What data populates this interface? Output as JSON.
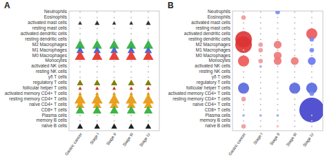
{
  "chart_data": [
    {
      "type": "triangle",
      "title": "A",
      "categories": [
        "Gastric cancer",
        "Stage I",
        "Stage II",
        "Stage III",
        "Stage IV"
      ],
      "y_categories": [
        "Neutrophils",
        "Eosinophils",
        "activated mast cells",
        "resting mast cells",
        "activated dendritic cells",
        "resting dendritic cells",
        "M2 Macrophages",
        "M1 Macrophages",
        "M0 Macrophages",
        "Monocytes",
        "activated NK cells",
        "resting NK cells",
        "γδ T cells",
        "regulatory T cells",
        "follicular helper T cells",
        "activated memory CD4+ T cells",
        "resting memory CD4+ T cells",
        "naïve CD4+ T cells",
        "CD8+ T cells",
        "Plasma cells",
        "memory B cells",
        "naïve B cells"
      ],
      "series": [
        {
          "name": "M2 Macrophages",
          "color": "#3db54a",
          "values": [
            140,
            140,
            140,
            140,
            140
          ]
        },
        {
          "name": "M1 Macrophages",
          "color": "#4169e1",
          "values": [
            80,
            80,
            80,
            80,
            80
          ]
        },
        {
          "name": "M0 Macrophages",
          "color": "#e8433a",
          "values": [
            160,
            160,
            160,
            160,
            160
          ]
        },
        {
          "name": "regulatory T cells",
          "color": "#808000",
          "values": [
            60,
            60,
            60,
            60,
            60
          ]
        },
        {
          "name": "follicular helper T cells",
          "color": "#cc3333",
          "values": [
            20,
            20,
            20,
            20,
            20
          ]
        },
        {
          "name": "activated memory CD4+ T cells",
          "color": "#d4a017",
          "values": [
            20,
            20,
            20,
            20,
            20
          ]
        },
        {
          "name": "resting memory CD4+ T cells",
          "color": "#e8a020",
          "values": [
            180,
            180,
            180,
            180,
            180
          ]
        },
        {
          "name": "naïve CD4+ T cells",
          "color": "#e8a020",
          "values": [
            110,
            110,
            110,
            110,
            110
          ]
        },
        {
          "name": "CD8+ T cells",
          "color": "#3db54a",
          "values": [
            110,
            110,
            110,
            110,
            110
          ]
        },
        {
          "name": "naïve B cells",
          "color": "#222222",
          "values": [
            50,
            50,
            50,
            50,
            50
          ]
        },
        {
          "name": "activated mast cells",
          "color": "#333333",
          "values": [
            22,
            35,
            22,
            22,
            35
          ]
        }
      ]
    },
    {
      "type": "bubble",
      "title": "B",
      "categories": [
        "Gastric cancer",
        "Stage I",
        "Stage II",
        "Stage III",
        "Stage IV"
      ],
      "y_categories": [
        "Neutrophils",
        "Eosinophils",
        "activated mast cells",
        "resting mast cells",
        "activated dendritic cells",
        "resting dendritic cells",
        "M2 Macrophages",
        "M1 Macrophages",
        "M0 Macrophages",
        "Monocytes",
        "activated NK cells",
        "resting NK cells",
        "γδ T cells",
        "regulatory T cells",
        "follicular helper T cells",
        "activated memory CD4+ T cells",
        "resting memory CD4+ T cells",
        "naïve CD4+ T cells",
        "CD8+ T cells",
        "Plasma cells",
        "memory B cells",
        "naïve B cells"
      ],
      "series": [
        {
          "name": "Neutrophils",
          "values": [
            null,
            null,
            30,
            null,
            null
          ],
          "colors": [
            null,
            null,
            "#7788ee",
            null,
            null
          ]
        },
        {
          "name": "Eosinophils",
          "values": [
            30,
            null,
            null,
            null,
            null
          ],
          "colors": [
            "#ee9999",
            null,
            null,
            null,
            null
          ]
        },
        {
          "name": "activated mast cells",
          "values": [
            null,
            null,
            null,
            null,
            null
          ],
          "colors": [
            null,
            null,
            null,
            null,
            null
          ]
        },
        {
          "name": "resting mast cells",
          "values": [
            null,
            null,
            null,
            null,
            null
          ],
          "colors": [
            null,
            null,
            null,
            null,
            null
          ]
        },
        {
          "name": "activated dendritic cells",
          "values": [
            null,
            null,
            null,
            null,
            180
          ],
          "colors": [
            null,
            null,
            null,
            null,
            "#ee5555"
          ]
        },
        {
          "name": "resting dendritic cells",
          "values": [
            400,
            null,
            null,
            null,
            30
          ],
          "colors": [
            "#dd3333",
            null,
            null,
            null,
            "#7788ee"
          ]
        },
        {
          "name": "M2 Macrophages",
          "values": [
            400,
            30,
            90,
            null,
            null
          ],
          "colors": [
            "#dd3333",
            "#ee9999",
            "#ee7777",
            null,
            null
          ]
        },
        {
          "name": "M1 Macrophages",
          "values": [
            null,
            30,
            null,
            null,
            30
          ],
          "colors": [
            null,
            "#ee9999",
            null,
            null,
            "#7788ee"
          ]
        },
        {
          "name": "M0 Macrophages",
          "values": [
            null,
            null,
            90,
            null,
            null
          ],
          "colors": [
            null,
            null,
            "#ee7777",
            null,
            null
          ]
        },
        {
          "name": "Monocytes",
          "values": [
            180,
            30,
            90,
            90,
            90
          ],
          "colors": [
            "#ee5555",
            "#ee9999",
            "#ee7777",
            "#ee7777",
            "#6677ee"
          ]
        },
        {
          "name": "activated NK cells",
          "values": [
            null,
            10,
            null,
            null,
            null
          ],
          "colors": [
            null,
            "#99aaee",
            null,
            null,
            null
          ]
        },
        {
          "name": "resting NK cells",
          "values": [
            null,
            null,
            null,
            null,
            null
          ],
          "colors": [
            null,
            null,
            null,
            null,
            null
          ]
        },
        {
          "name": "γδ T cells",
          "values": [
            null,
            null,
            null,
            null,
            null
          ],
          "colors": [
            null,
            null,
            null,
            null,
            null
          ]
        },
        {
          "name": "regulatory T cells",
          "values": [
            null,
            null,
            null,
            null,
            null
          ],
          "colors": [
            null,
            null,
            null,
            null,
            null
          ]
        },
        {
          "name": "follicular helper T cells",
          "values": [
            180,
            null,
            null,
            180,
            180
          ],
          "colors": [
            "#5566dd",
            null,
            null,
            "#5566dd",
            "#5566dd"
          ]
        },
        {
          "name": "activated memory CD4+ T cells",
          "values": [
            null,
            null,
            null,
            null,
            30
          ],
          "colors": [
            null,
            null,
            null,
            null,
            "#7788ee"
          ]
        },
        {
          "name": "resting memory CD4+ T cells",
          "values": [
            30,
            null,
            null,
            null,
            null
          ],
          "colors": [
            "#ee9999",
            null,
            null,
            null,
            null
          ]
        },
        {
          "name": "naïve CD4+ T cells",
          "values": [
            null,
            null,
            null,
            null,
            null
          ],
          "colors": [
            null,
            null,
            null,
            null,
            null
          ]
        },
        {
          "name": "CD8+ T cells",
          "values": [
            null,
            null,
            null,
            null,
            900
          ],
          "colors": [
            null,
            null,
            null,
            null,
            "#4040cc"
          ]
        },
        {
          "name": "Plasma cells",
          "values": [
            10,
            10,
            10,
            null,
            null
          ],
          "colors": [
            "#99aaee",
            "#99aaee",
            "#99aaee",
            null,
            null
          ]
        },
        {
          "name": "memory B cells",
          "values": [
            null,
            null,
            null,
            null,
            null
          ],
          "colors": [
            null,
            null,
            null,
            null,
            null
          ]
        },
        {
          "name": "naïve B cells",
          "values": [
            30,
            null,
            10,
            null,
            null
          ],
          "colors": [
            "#ee9999",
            null,
            "#ffbbbb",
            null,
            null
          ]
        }
      ]
    }
  ]
}
